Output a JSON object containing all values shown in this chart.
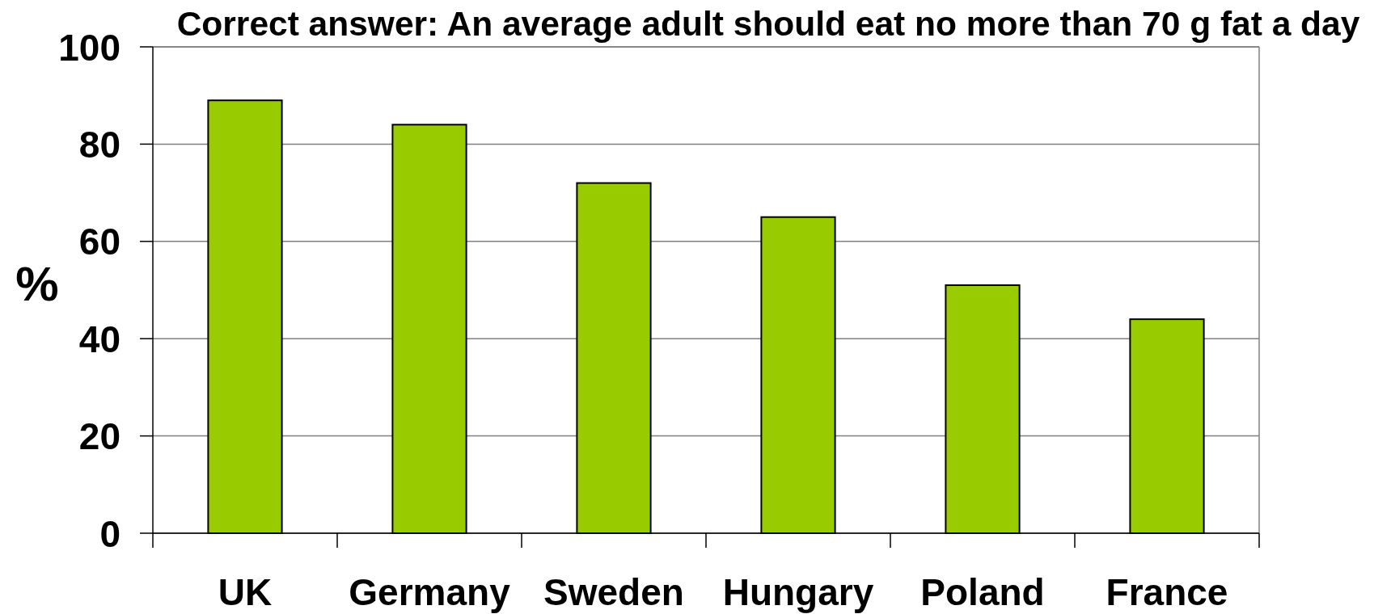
{
  "chart_data": {
    "type": "bar",
    "title": "Correct answer: An average adult should eat no more than 70 g fat a day",
    "ylabel": "%",
    "categories": [
      "UK",
      "Germany",
      "Sweden",
      "Hungary",
      "Poland",
      "France"
    ],
    "values": [
      89,
      84,
      72,
      65,
      51,
      44
    ],
    "color": "#99cc00",
    "ylim": [
      0,
      100
    ],
    "yticks": [
      0,
      20,
      40,
      60,
      80,
      100
    ],
    "grid": "y"
  }
}
